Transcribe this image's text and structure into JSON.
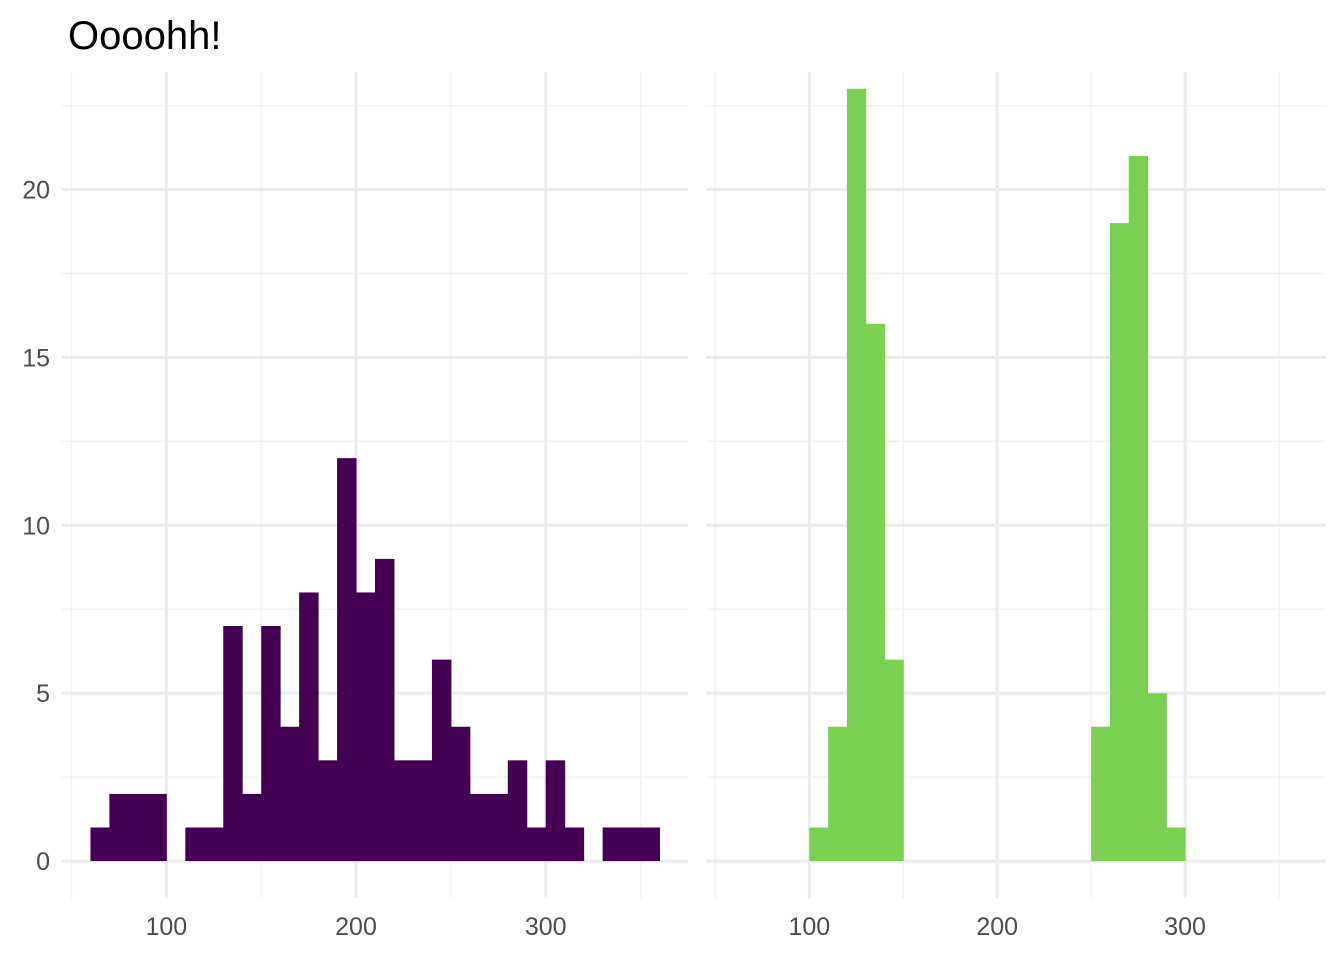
{
  "chart_data": {
    "type": "bar",
    "subtype": "histogram",
    "title": "Oooohh!",
    "xlabel": "",
    "ylabel": "",
    "legend": "none",
    "grid": true,
    "ylim": [
      -1.1,
      23.5
    ],
    "yticks": [
      0,
      5,
      10,
      15,
      20
    ],
    "binwidth": 10,
    "panels": [
      {
        "color": "#440154",
        "xlim": [
          45,
          375
        ],
        "xticks": [
          100,
          200,
          300
        ],
        "bins": [
          {
            "x": 65,
            "count": 1
          },
          {
            "x": 75,
            "count": 2
          },
          {
            "x": 85,
            "count": 2
          },
          {
            "x": 95,
            "count": 2
          },
          {
            "x": 105,
            "count": 0
          },
          {
            "x": 115,
            "count": 1
          },
          {
            "x": 125,
            "count": 1
          },
          {
            "x": 135,
            "count": 7
          },
          {
            "x": 145,
            "count": 2
          },
          {
            "x": 155,
            "count": 7
          },
          {
            "x": 165,
            "count": 4
          },
          {
            "x": 175,
            "count": 8
          },
          {
            "x": 185,
            "count": 3
          },
          {
            "x": 195,
            "count": 12
          },
          {
            "x": 205,
            "count": 8
          },
          {
            "x": 215,
            "count": 9
          },
          {
            "x": 225,
            "count": 3
          },
          {
            "x": 235,
            "count": 3
          },
          {
            "x": 245,
            "count": 6
          },
          {
            "x": 255,
            "count": 4
          },
          {
            "x": 265,
            "count": 2
          },
          {
            "x": 275,
            "count": 2
          },
          {
            "x": 285,
            "count": 3
          },
          {
            "x": 295,
            "count": 1
          },
          {
            "x": 305,
            "count": 3
          },
          {
            "x": 315,
            "count": 1
          },
          {
            "x": 325,
            "count": 0
          },
          {
            "x": 335,
            "count": 1
          },
          {
            "x": 345,
            "count": 1
          },
          {
            "x": 355,
            "count": 1
          }
        ]
      },
      {
        "color": "#7AD151",
        "xlim": [
          45,
          375
        ],
        "xticks": [
          100,
          200,
          300
        ],
        "bins": [
          {
            "x": 105,
            "count": 1
          },
          {
            "x": 115,
            "count": 4
          },
          {
            "x": 125,
            "count": 23
          },
          {
            "x": 135,
            "count": 16
          },
          {
            "x": 145,
            "count": 6
          },
          {
            "x": 255,
            "count": 4
          },
          {
            "x": 265,
            "count": 19
          },
          {
            "x": 275,
            "count": 21
          },
          {
            "x": 285,
            "count": 5
          },
          {
            "x": 295,
            "count": 1
          }
        ]
      }
    ]
  }
}
